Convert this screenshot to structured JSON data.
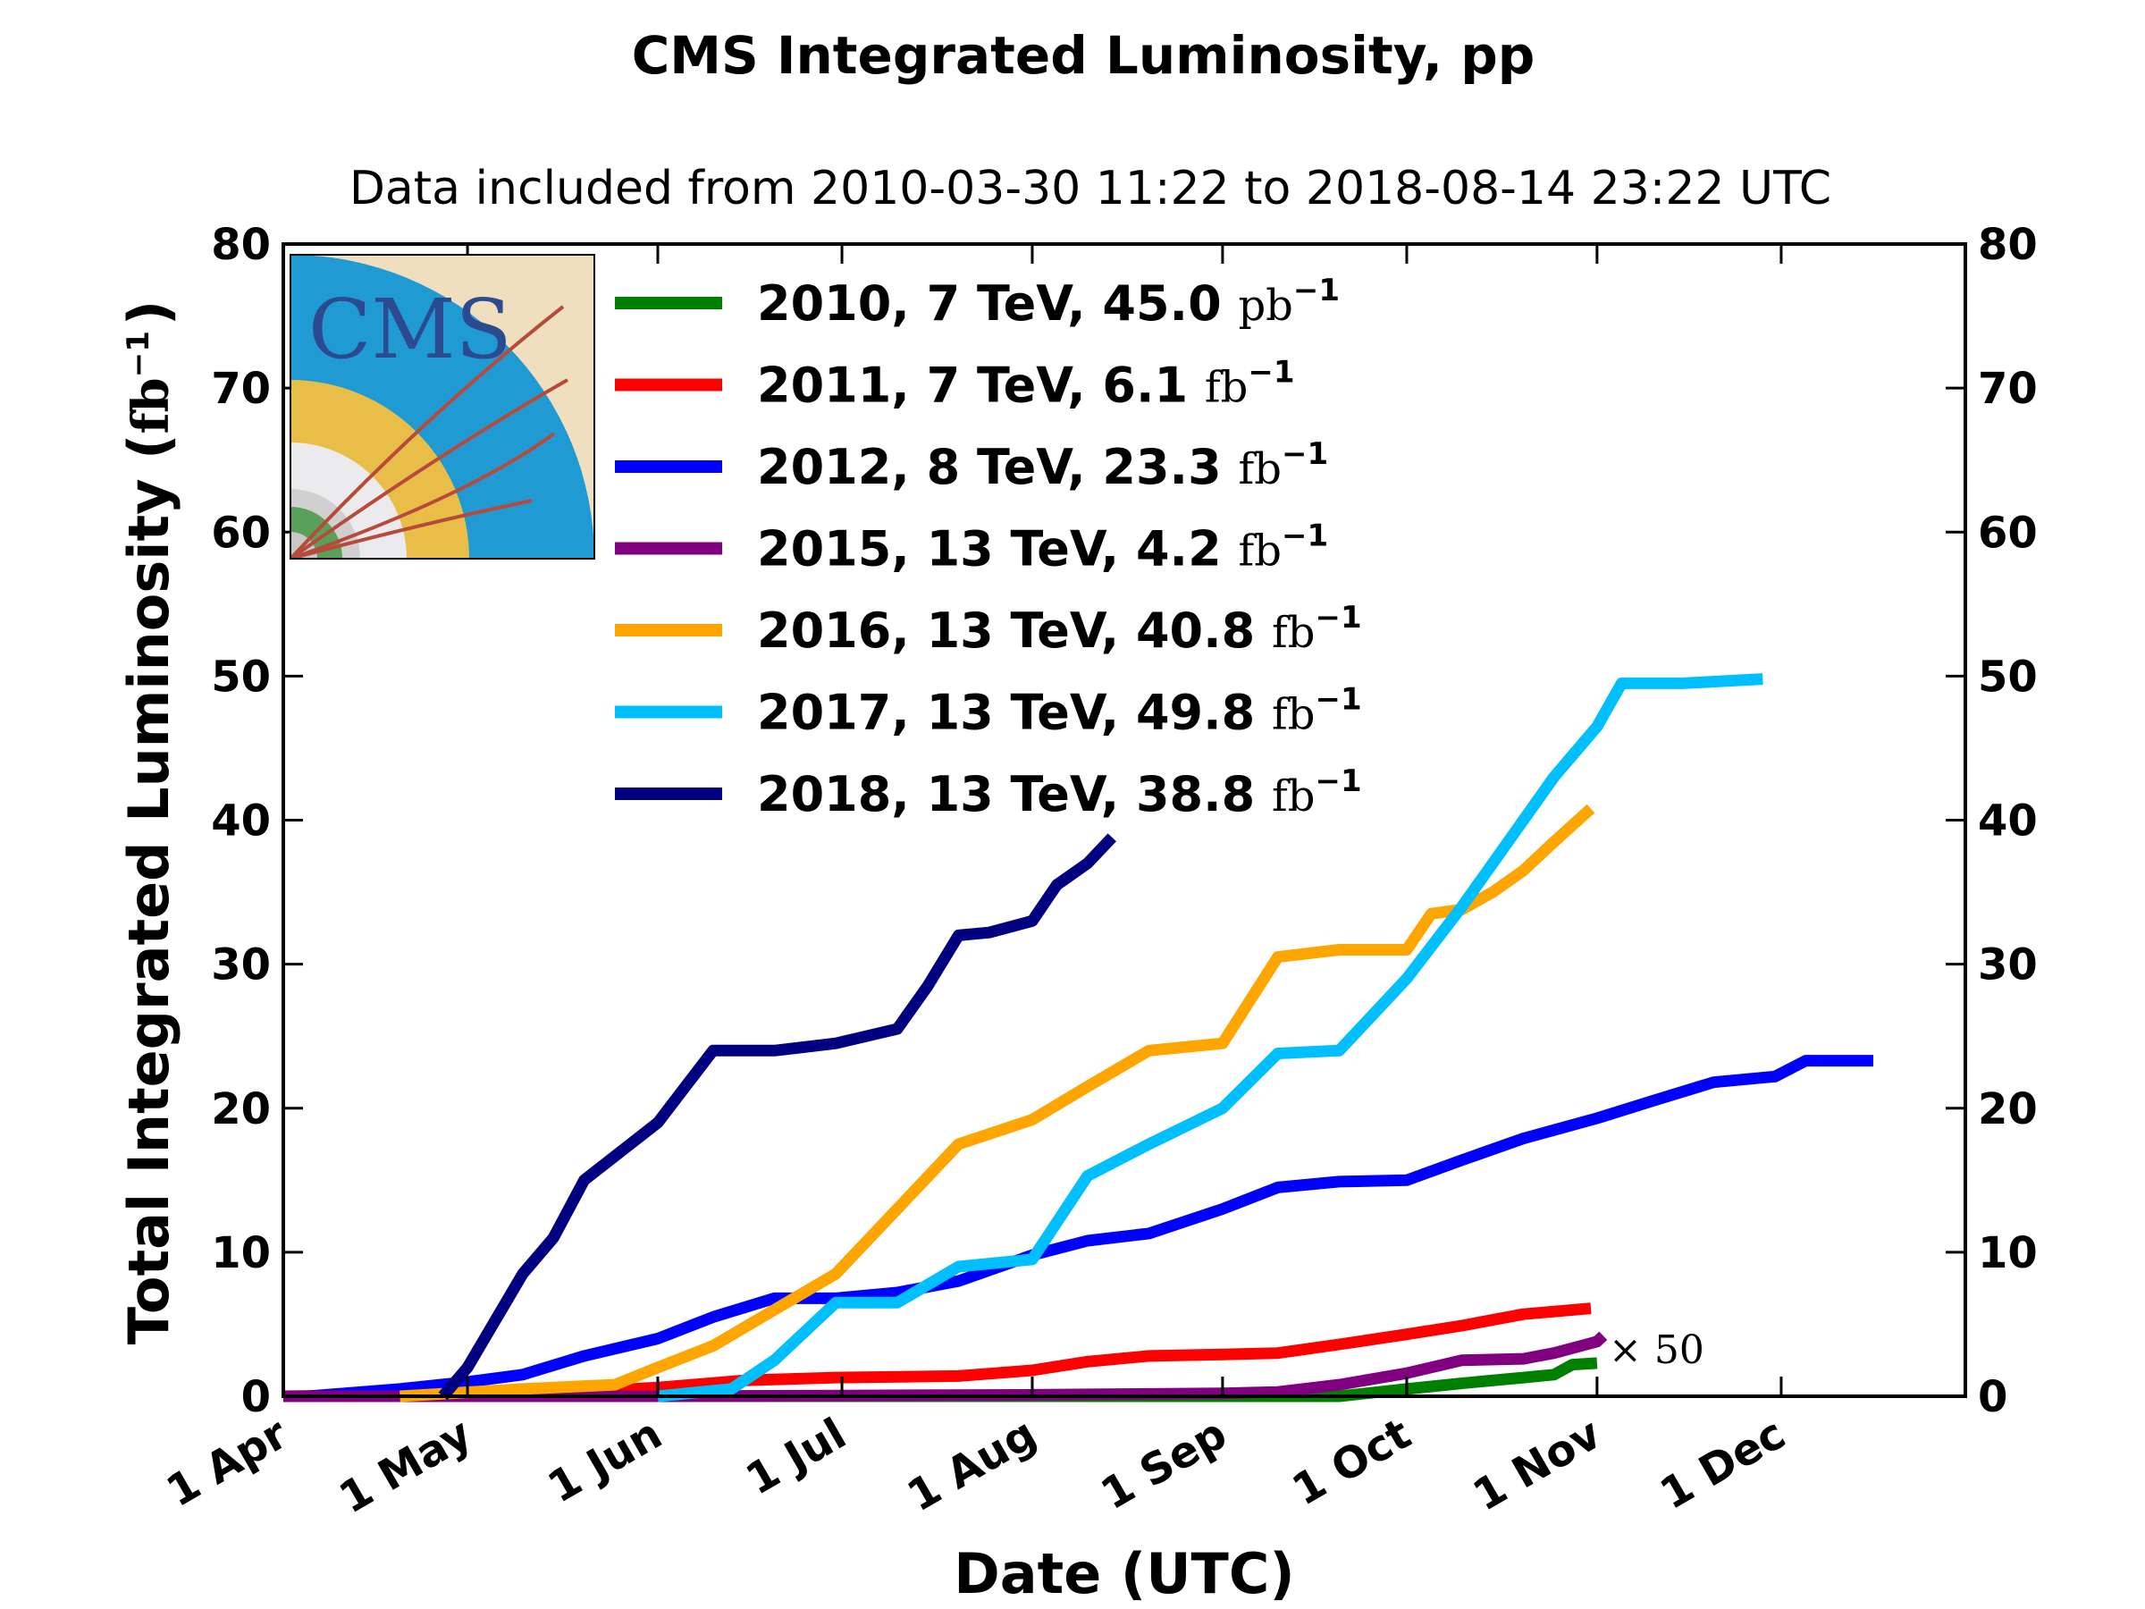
{
  "chart_data": {
    "type": "line",
    "title": "CMS Integrated Luminosity, pp",
    "subtitle": "Data included from 2010-03-30 11:22 to 2018-08-14 23:22 UTC",
    "xlabel": "Date (UTC)",
    "ylabel_main": "Total Integrated Luminosity (",
    "ylabel_unit": "fb",
    "ylabel_sup": "−1",
    "ylabel_close": ")",
    "x_tick_labels": [
      "1 Apr",
      "1 May",
      "1 Jun",
      "1 Jul",
      "1 Aug",
      "1 Sep",
      "1 Oct",
      "1 Nov",
      "1 Dec"
    ],
    "x_tick_dates": [
      "04-01",
      "05-01",
      "06-01",
      "07-01",
      "08-01",
      "09-01",
      "10-01",
      "11-01",
      "12-01"
    ],
    "xlim": [
      "04-01",
      "12-31"
    ],
    "ylim": [
      0,
      80
    ],
    "y_ticks": [
      0,
      10,
      20,
      30,
      40,
      50,
      60,
      70,
      80
    ],
    "grid": false,
    "legend_position": "top-left",
    "annotation": "× 50",
    "annotation_series": "2010",
    "series": [
      {
        "name": "2010",
        "legend_prefix": "2010, 7 TeV, 45.0 ",
        "legend_unit": "pb",
        "legend_sup": "−1",
        "color": "#008000",
        "x": [
          "04-01",
          "09-20",
          "10-01",
          "10-10",
          "10-20",
          "10-25",
          "10-28",
          "11-01"
        ],
        "y": [
          0,
          0,
          0.5,
          0.9,
          1.3,
          1.5,
          2.2,
          2.3
        ]
      },
      {
        "name": "2011",
        "legend_prefix": "2011, 7 TeV, 6.1 ",
        "legend_unit": "fb",
        "legend_sup": "−1",
        "color": "#ff0000",
        "x": [
          "04-01",
          "05-15",
          "06-01",
          "06-15",
          "06-30",
          "07-20",
          "08-01",
          "08-10",
          "08-20",
          "09-01",
          "09-10",
          "09-20",
          "10-01",
          "10-10",
          "10-20",
          "10-31"
        ],
        "y": [
          0,
          0.2,
          0.6,
          1.1,
          1.3,
          1.4,
          1.8,
          2.4,
          2.8,
          2.9,
          3.0,
          3.6,
          4.3,
          4.9,
          5.7,
          6.1
        ]
      },
      {
        "name": "2012",
        "legend_prefix": "2012, 8 TeV, 23.3 ",
        "legend_unit": "fb",
        "legend_sup": "−1",
        "color": "#0000ff",
        "x": [
          "04-05",
          "04-20",
          "05-01",
          "05-10",
          "05-20",
          "06-01",
          "06-10",
          "06-20",
          "06-30",
          "07-10",
          "07-20",
          "08-01",
          "08-10",
          "08-20",
          "09-01",
          "09-10",
          "09-20",
          "10-01",
          "10-10",
          "10-20",
          "11-01",
          "11-10",
          "11-20",
          "11-30",
          "12-05",
          "12-16"
        ],
        "y": [
          0,
          0.5,
          1.0,
          1.5,
          2.8,
          4.0,
          5.5,
          6.8,
          6.8,
          7.2,
          8.0,
          9.8,
          10.8,
          11.3,
          13.0,
          14.5,
          14.9,
          15.0,
          16.4,
          17.9,
          19.3,
          20.5,
          21.8,
          22.2,
          23.3,
          23.3
        ]
      },
      {
        "name": "2015",
        "legend_prefix": "2015, 13 TeV, 4.2 ",
        "legend_unit": "fb",
        "legend_sup": "−1",
        "color": "#800080",
        "x": [
          "04-01",
          "06-01",
          "07-01",
          "08-01",
          "09-01",
          "09-10",
          "09-20",
          "10-01",
          "10-10",
          "10-20",
          "10-25",
          "11-01",
          "11-02"
        ],
        "y": [
          0,
          0,
          0.05,
          0.1,
          0.2,
          0.3,
          0.8,
          1.6,
          2.5,
          2.6,
          3.0,
          3.8,
          4.2
        ]
      },
      {
        "name": "2016",
        "legend_prefix": "2016, 13 TeV, 40.8 ",
        "legend_unit": "fb",
        "legend_sup": "−1",
        "color": "#ffa500",
        "x": [
          "04-20",
          "05-10",
          "05-25",
          "06-01",
          "06-10",
          "06-20",
          "06-30",
          "07-10",
          "07-20",
          "08-01",
          "08-10",
          "08-20",
          "09-01",
          "09-10",
          "09-20",
          "10-01",
          "10-05",
          "10-10",
          "10-15",
          "10-20",
          "10-25",
          "10-31"
        ],
        "y": [
          0,
          0.5,
          0.8,
          2.0,
          3.5,
          6.0,
          8.5,
          13.0,
          17.5,
          19.2,
          21.5,
          24.0,
          24.5,
          30.5,
          31.0,
          31.0,
          33.5,
          33.8,
          35.0,
          36.5,
          38.5,
          40.8
        ]
      },
      {
        "name": "2017",
        "legend_prefix": "2017, 13 TeV, 49.8 ",
        "legend_unit": "fb",
        "legend_sup": "−1",
        "color": "#00bfff",
        "x": [
          "06-01",
          "06-13",
          "06-20",
          "06-30",
          "07-10",
          "07-20",
          "08-01",
          "08-10",
          "08-20",
          "09-01",
          "09-10",
          "09-20",
          "10-01",
          "10-10",
          "10-20",
          "10-25",
          "11-01",
          "11-05",
          "11-15",
          "11-28"
        ],
        "y": [
          0,
          0.5,
          2.5,
          6.5,
          6.5,
          9.0,
          9.5,
          15.3,
          17.5,
          20.0,
          23.8,
          24.0,
          29.0,
          34.0,
          40.0,
          43.0,
          46.5,
          49.5,
          49.5,
          49.8
        ]
      },
      {
        "name": "2018",
        "legend_prefix": "2018, 13 TeV, 38.8 ",
        "legend_unit": "fb",
        "legend_sup": "−1",
        "color": "#000080",
        "x": [
          "04-27",
          "05-01",
          "05-10",
          "05-15",
          "05-20",
          "06-01",
          "06-10",
          "06-15",
          "06-20",
          "06-30",
          "07-10",
          "07-15",
          "07-20",
          "07-25",
          "08-01",
          "08-05",
          "08-10",
          "08-14"
        ],
        "y": [
          0,
          2.0,
          8.5,
          11.0,
          15.0,
          19.0,
          24.0,
          24.0,
          24.0,
          24.5,
          25.5,
          28.5,
          32.0,
          32.2,
          33.0,
          35.5,
          37.0,
          38.8
        ]
      }
    ]
  }
}
